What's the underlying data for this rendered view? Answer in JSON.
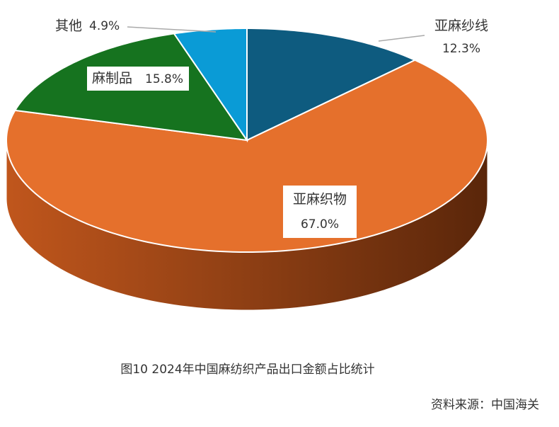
{
  "chart_data": {
    "type": "pie",
    "title": "图10  2024年中国麻纺织产品出口金额占比统计",
    "source": "资料来源：中国海关",
    "categories": [
      "亚麻纱线",
      "亚麻织物",
      "麻制品",
      "其他"
    ],
    "values": [
      12.3,
      67.0,
      15.8,
      4.9
    ],
    "value_labels": [
      "12.3%",
      "67.0%",
      "15.8%",
      "4.9%"
    ],
    "colors": [
      "#0e5b7f",
      "#e5702c",
      "#16731f",
      "#0a9bd6"
    ]
  }
}
